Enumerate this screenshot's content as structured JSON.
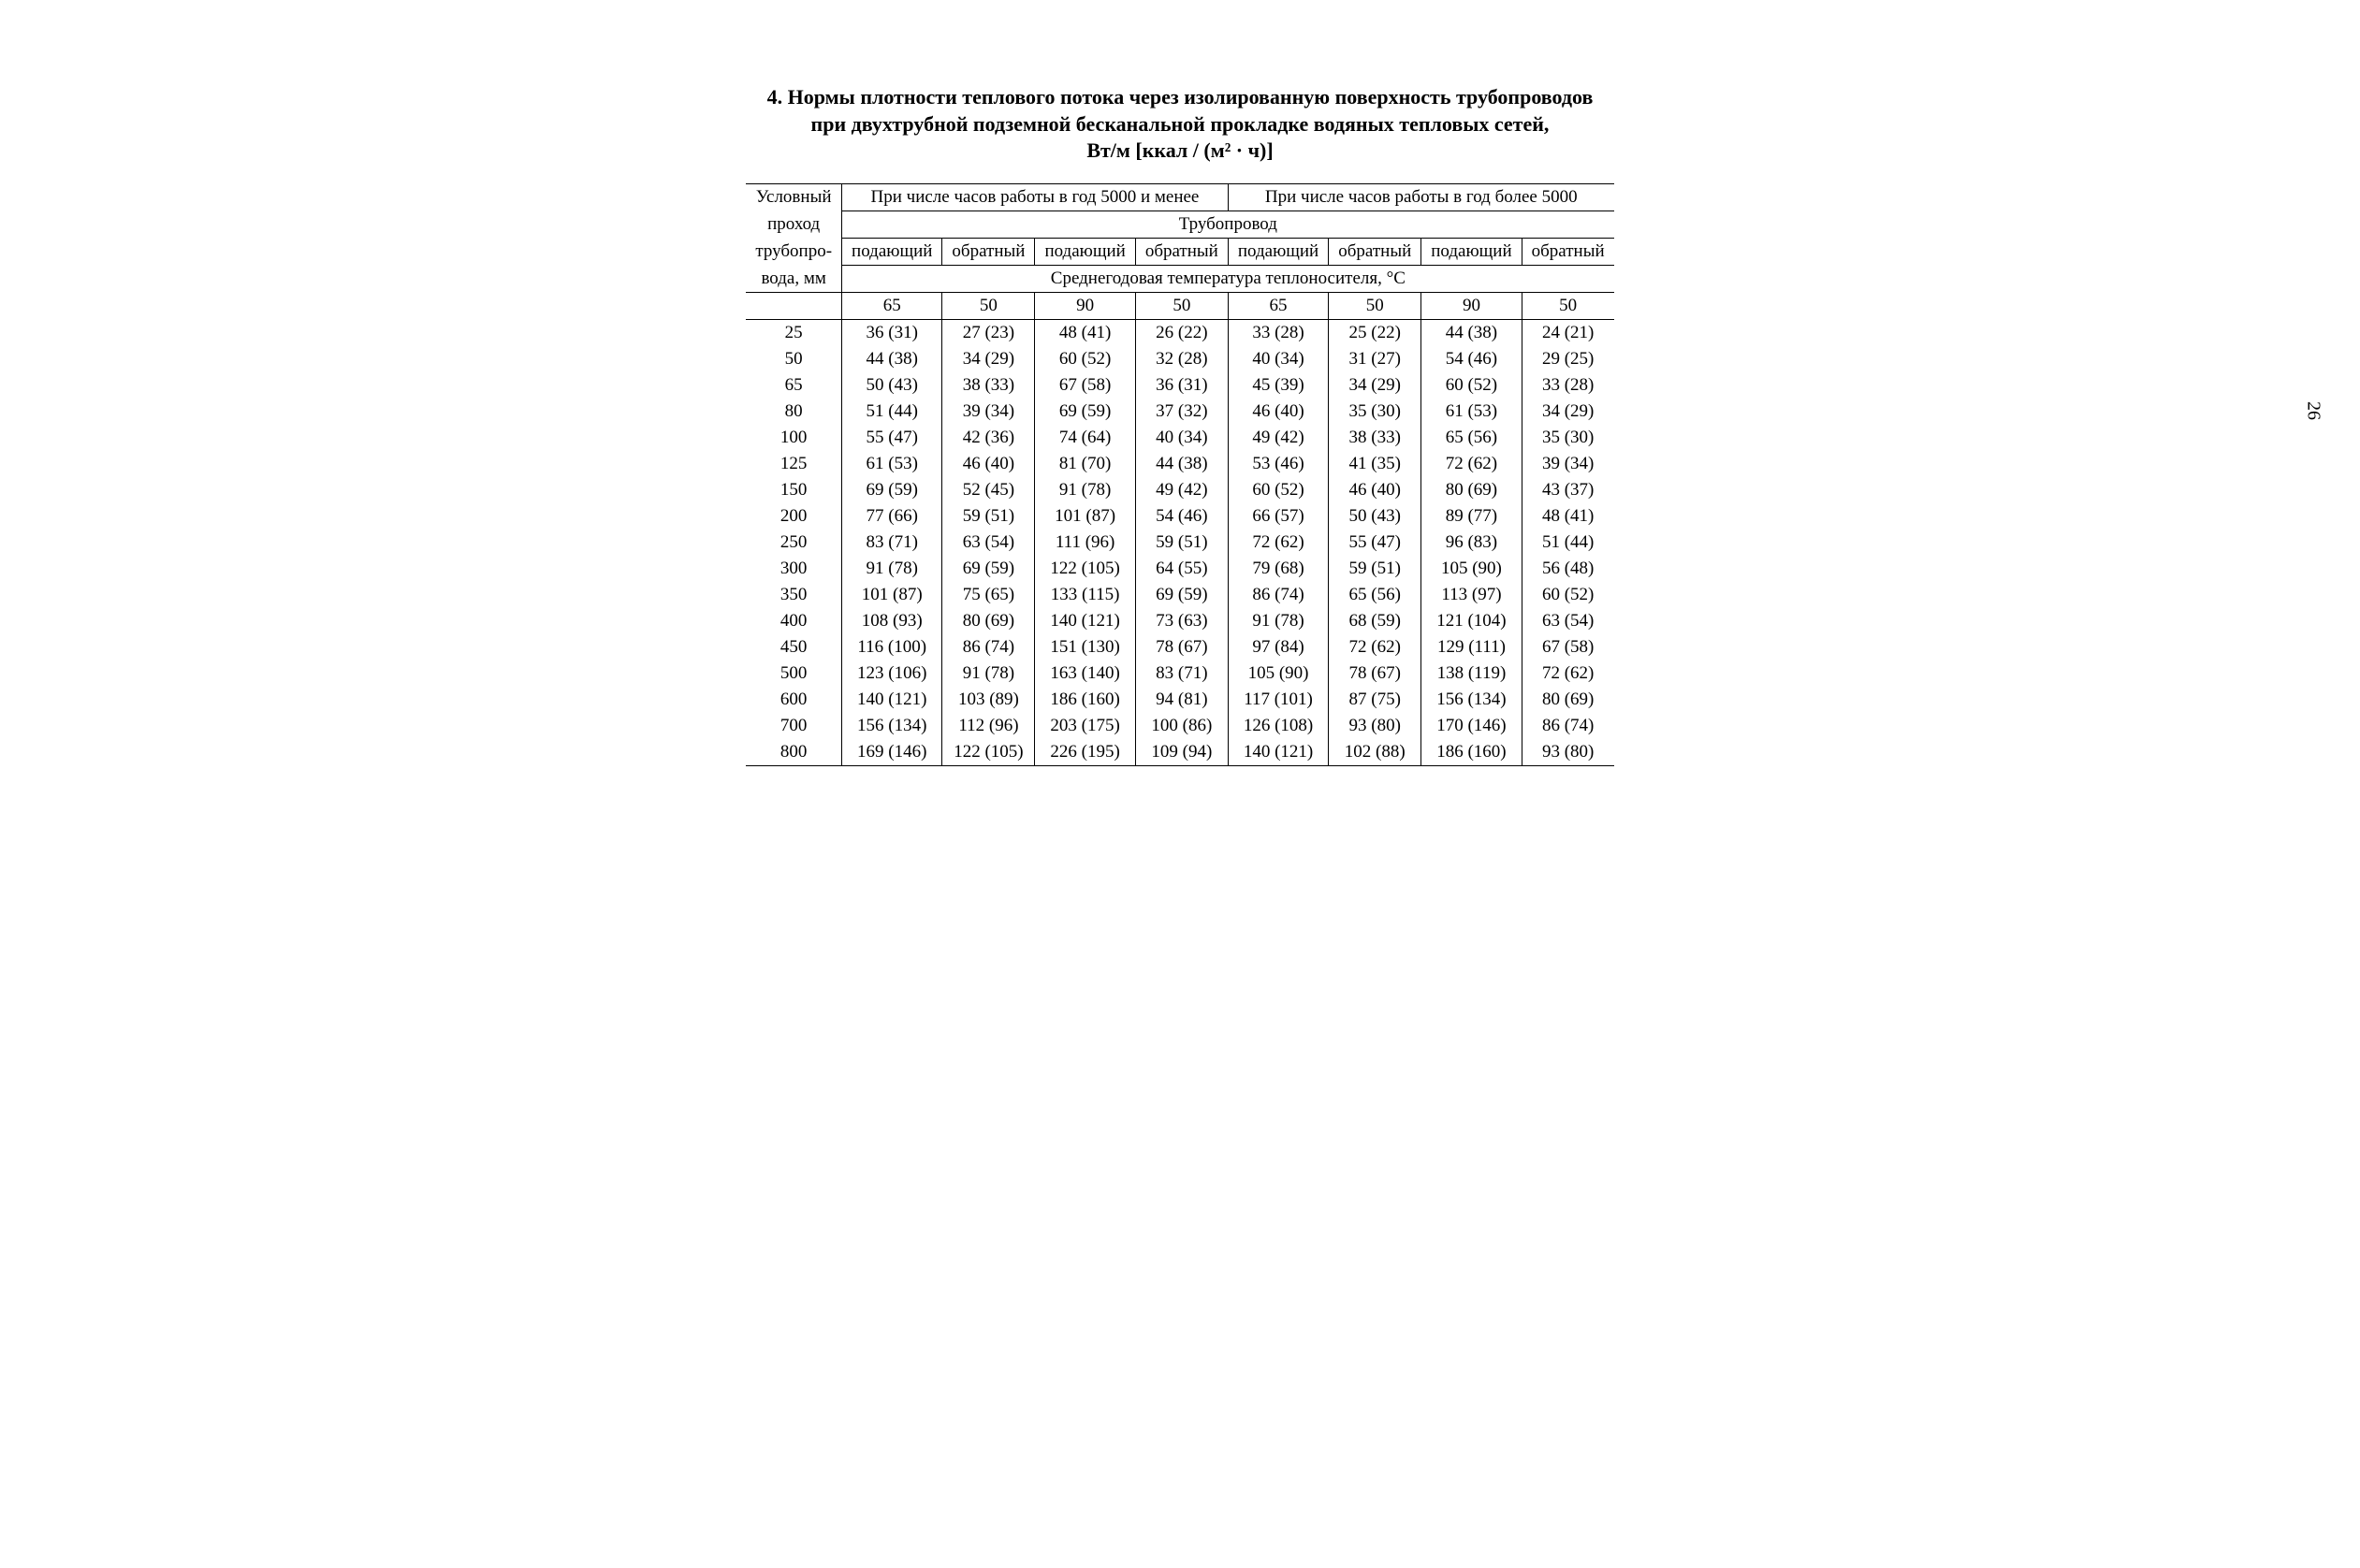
{
  "title_line1": "4. Нормы плотности теплового потока через изолированную поверхность трубопроводов",
  "title_line2": "при двухтрубной подземной бесканальной прокладке водяных тепловых сетей,",
  "title_line3": "Вт/м [ккал / (м² · ч)]",
  "page_number": "26",
  "row_header_l1": "Условный",
  "row_header_l2": "проход",
  "row_header_l3": "трубопро-",
  "row_header_l4": "вода, мм",
  "group1": "При числе часов работы в год 5000 и менее",
  "group2": "При числе часов работы в год более 5000",
  "sub_pipe": "Трубопровод",
  "sub_supply": "подающий",
  "sub_return": "обратный",
  "sub_temp": "Среднегодовая температура теплоносителя, °С",
  "temps": [
    "65",
    "50",
    "90",
    "50",
    "65",
    "50",
    "90",
    "50"
  ],
  "rows": [
    {
      "d": "25",
      "c": [
        "36 (31)",
        "27 (23)",
        "48 (41)",
        "26 (22)",
        "33 (28)",
        "25 (22)",
        "44 (38)",
        "24 (21)"
      ]
    },
    {
      "d": "50",
      "c": [
        "44 (38)",
        "34 (29)",
        "60 (52)",
        "32 (28)",
        "40 (34)",
        "31 (27)",
        "54 (46)",
        "29 (25)"
      ]
    },
    {
      "d": "65",
      "c": [
        "50 (43)",
        "38 (33)",
        "67 (58)",
        "36 (31)",
        "45 (39)",
        "34 (29)",
        "60 (52)",
        "33 (28)"
      ]
    },
    {
      "d": "80",
      "c": [
        "51 (44)",
        "39 (34)",
        "69 (59)",
        "37 (32)",
        "46 (40)",
        "35 (30)",
        "61 (53)",
        "34 (29)"
      ]
    },
    {
      "d": "100",
      "c": [
        "55 (47)",
        "42 (36)",
        "74 (64)",
        "40 (34)",
        "49 (42)",
        "38 (33)",
        "65 (56)",
        "35 (30)"
      ]
    },
    {
      "d": "125",
      "c": [
        "61 (53)",
        "46 (40)",
        "81 (70)",
        "44 (38)",
        "53 (46)",
        "41 (35)",
        "72 (62)",
        "39 (34)"
      ]
    },
    {
      "d": "150",
      "c": [
        "69 (59)",
        "52 (45)",
        "91 (78)",
        "49 (42)",
        "60 (52)",
        "46 (40)",
        "80 (69)",
        "43 (37)"
      ]
    },
    {
      "d": "200",
      "c": [
        "77 (66)",
        "59 (51)",
        "101 (87)",
        "54 (46)",
        "66 (57)",
        "50 (43)",
        "89 (77)",
        "48 (41)"
      ]
    },
    {
      "d": "250",
      "c": [
        "83 (71)",
        "63 (54)",
        "111 (96)",
        "59 (51)",
        "72 (62)",
        "55 (47)",
        "96 (83)",
        "51 (44)"
      ]
    },
    {
      "d": "300",
      "c": [
        "91 (78)",
        "69 (59)",
        "122 (105)",
        "64 (55)",
        "79 (68)",
        "59 (51)",
        "105 (90)",
        "56 (48)"
      ]
    },
    {
      "d": "350",
      "c": [
        "101 (87)",
        "75 (65)",
        "133 (115)",
        "69 (59)",
        "86 (74)",
        "65 (56)",
        "113 (97)",
        "60 (52)"
      ]
    },
    {
      "d": "400",
      "c": [
        "108 (93)",
        "80 (69)",
        "140 (121)",
        "73 (63)",
        "91 (78)",
        "68 (59)",
        "121 (104)",
        "63 (54)"
      ]
    },
    {
      "d": "450",
      "c": [
        "116 (100)",
        "86 (74)",
        "151 (130)",
        "78 (67)",
        "97 (84)",
        "72 (62)",
        "129 (111)",
        "67 (58)"
      ]
    },
    {
      "d": "500",
      "c": [
        "123 (106)",
        "91 (78)",
        "163 (140)",
        "83 (71)",
        "105 (90)",
        "78 (67)",
        "138 (119)",
        "72 (62)"
      ]
    },
    {
      "d": "600",
      "c": [
        "140 (121)",
        "103 (89)",
        "186 (160)",
        "94 (81)",
        "117 (101)",
        "87 (75)",
        "156 (134)",
        "80 (69)"
      ]
    },
    {
      "d": "700",
      "c": [
        "156 (134)",
        "112 (96)",
        "203 (175)",
        "100 (86)",
        "126 (108)",
        "93 (80)",
        "170 (146)",
        "86 (74)"
      ]
    },
    {
      "d": "800",
      "c": [
        "169 (146)",
        "122 (105)",
        "226 (195)",
        "109 (94)",
        "140 (121)",
        "102 (88)",
        "186 (160)",
        "93 (80)"
      ]
    }
  ],
  "col_widths": [
    "120",
    "120",
    "120",
    "120",
    "120",
    "120",
    "120",
    "120",
    "120"
  ]
}
